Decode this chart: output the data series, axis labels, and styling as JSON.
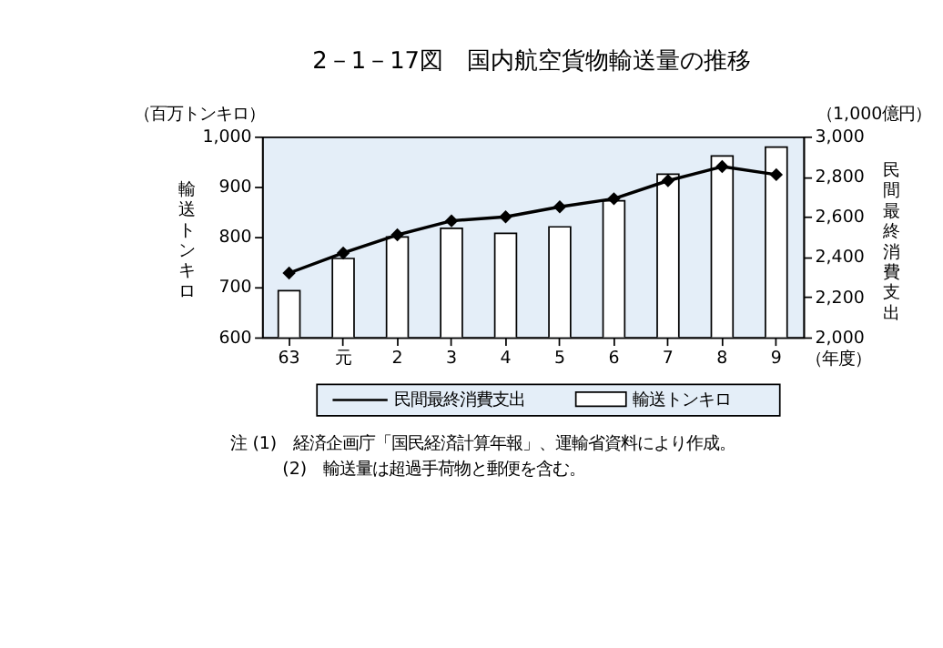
{
  "chart_data": {
    "type": "bar",
    "title": "2－1－17図　国内航空貨物輸送量の推移",
    "categories": [
      "63",
      "元",
      "2",
      "3",
      "4",
      "5",
      "6",
      "7",
      "8",
      "9"
    ],
    "xlabel": "（年度）",
    "ylabel": "輸送トンキロ",
    "y2label": "民間最終消費支出",
    "series": [
      {
        "name": "輸送トンキロ",
        "color": "#ffffff",
        "values": [
          693,
          757,
          800,
          817,
          807,
          820,
          872,
          925,
          961,
          979
        ]
      },
      {
        "name": "民間最終消費支出",
        "type": "line",
        "axis": "y2",
        "color": "#000000",
        "values": [
          2320,
          2420,
          2510,
          2580,
          2600,
          2650,
          2690,
          2780,
          2850,
          2810
        ]
      }
    ],
    "ylim": [
      600,
      1000
    ],
    "yticks": [
      600,
      700,
      800,
      900,
      {
        "value": 1000,
        "label": "1,000"
      }
    ],
    "y2lim": [
      2000,
      3000
    ],
    "y2ticks": [
      {
        "value": 2000,
        "label": "2,000"
      },
      {
        "value": 2200,
        "label": "2,200"
      },
      {
        "value": 2400,
        "label": "2,400"
      },
      {
        "value": 2600,
        "label": "2,600"
      },
      {
        "value": 2800,
        "label": "2,800"
      },
      {
        "value": 3000,
        "label": "3,000"
      }
    ],
    "marker": "diamond",
    "grid": false,
    "legend": "bottom",
    "annotations": [
      "（百万トンキロ）",
      "（1,000億円）",
      "注 (1)　経済企画庁「国民経済計算年報」、運輸省資料により作成。",
      "(2)　輸送量は超過手荷物と郵便を含む。"
    ]
  }
}
